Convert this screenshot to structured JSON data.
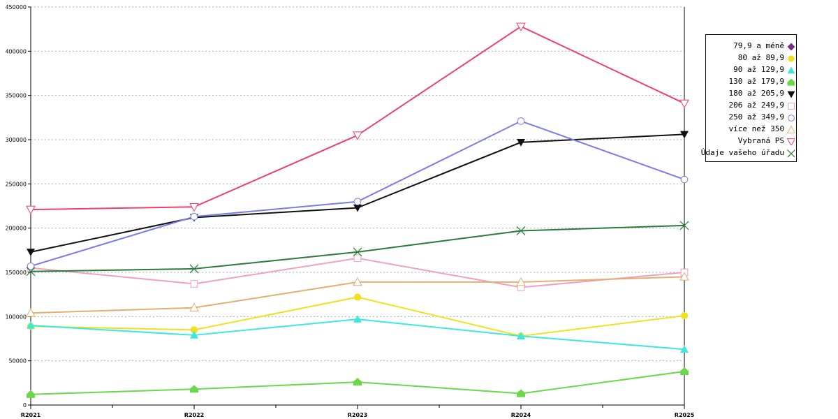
{
  "chart_data": {
    "type": "line",
    "title": "",
    "xlabel": "",
    "ylabel": "",
    "categories": [
      "R2021",
      "R2022",
      "R2023",
      "R2024",
      "R2025"
    ],
    "ylim": [
      0,
      450000
    ],
    "yticks": [
      "0",
      "50000",
      "100000",
      "150000",
      "200000",
      "250000",
      "300000",
      "350000",
      "400000",
      "450000"
    ],
    "ytick_values": [
      0,
      50000,
      100000,
      150000,
      200000,
      250000,
      300000,
      350000,
      400000,
      450000
    ],
    "grid": "horizontal-dotted",
    "legend_position": "right",
    "series": [
      {
        "name": "79,9 a méně",
        "color": "#7b2d8b",
        "marker": "diamond",
        "values": [
          null,
          null,
          null,
          null,
          null
        ]
      },
      {
        "name": "80 až 89,9",
        "color": "#f0e020",
        "marker": "circle-filled",
        "values": [
          89000,
          85000,
          122000,
          78000,
          101000
        ]
      },
      {
        "name": "90 až 129,9",
        "color": "#3de8e0",
        "marker": "triangle-up-filled",
        "values": [
          90000,
          79000,
          97000,
          78000,
          63000
        ]
      },
      {
        "name": "130 až 179,9",
        "color": "#6ad84a",
        "marker": "house-filled",
        "values": [
          12000,
          18000,
          26000,
          13000,
          38000
        ]
      },
      {
        "name": "180 až 205,9",
        "color": "#111111",
        "marker": "triangle-down-filled",
        "values": [
          173000,
          212000,
          223000,
          297000,
          306000
        ]
      },
      {
        "name": "206 až 249,9",
        "color": "#f0a0c0",
        "marker": "square-open",
        "values": [
          155000,
          137000,
          166000,
          133000,
          150000
        ]
      },
      {
        "name": "250 až 349,9",
        "color": "#7b7be8",
        "marker": "circle-open",
        "values": [
          157000,
          213000,
          230000,
          321000,
          255000
        ]
      },
      {
        "name": "více než 350",
        "color": "#e0b070",
        "marker": "triangle-up-open",
        "values": [
          104000,
          110000,
          139000,
          139000,
          145000
        ]
      },
      {
        "name": "Vybraná PS",
        "color": "#f0406a",
        "marker": "triangle-down-open",
        "values": [
          221000,
          224000,
          305000,
          428000,
          341000
        ]
      },
      {
        "name": "Údaje vašeho úřadu",
        "color": "#2a7a3a",
        "marker": "x",
        "values": [
          151000,
          154000,
          173000,
          197000,
          203000
        ]
      }
    ]
  }
}
